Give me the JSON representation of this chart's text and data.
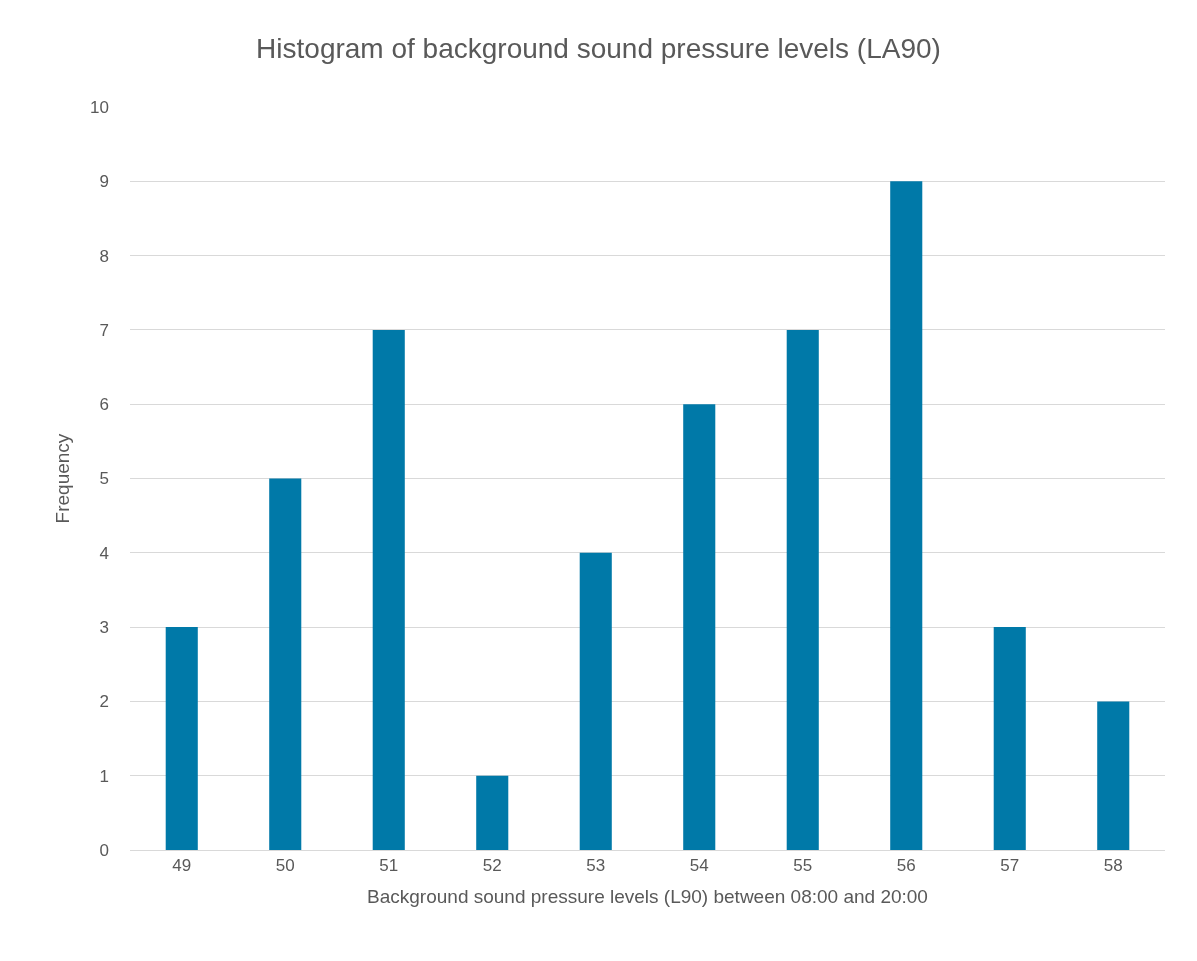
{
  "chart_data": {
    "type": "bar",
    "title": "Histogram of background sound pressure levels (LA90)",
    "xlabel": "Background sound pressure levels (L90) between 08:00 and 20:00",
    "ylabel": "Frequency",
    "categories": [
      "49",
      "50",
      "51",
      "52",
      "53",
      "54",
      "55",
      "56",
      "57",
      "58"
    ],
    "values": [
      3,
      5,
      7,
      1,
      4,
      6,
      7,
      9,
      3,
      2
    ],
    "color": "#0079a8",
    "ylim": [
      0,
      10
    ],
    "yticks": [
      0,
      1,
      2,
      3,
      4,
      5,
      6,
      7,
      8,
      9,
      10
    ],
    "grid": "y"
  }
}
